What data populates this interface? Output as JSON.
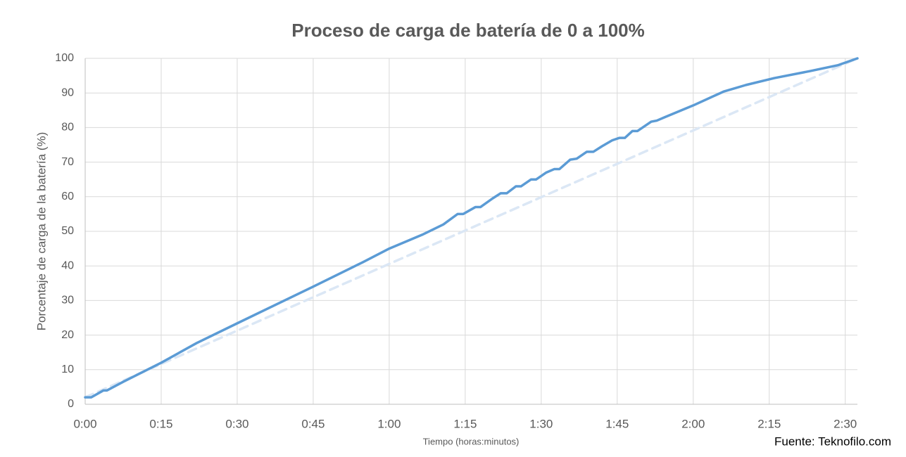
{
  "chart_data": {
    "type": "line",
    "title": "Proceso de carga de batería de 0 a 100%",
    "x_label": "Tiempo (horas:minutos)",
    "y_label": "Porcentaje de carga de la batería (%)",
    "source": "Fuente: Teknofilo.com",
    "xlim": [
      0,
      152.4
    ],
    "xticks": [
      {
        "value": 0,
        "label": "0:00"
      },
      {
        "value": 15,
        "label": "0:15"
      },
      {
        "value": 30,
        "label": "0:30"
      },
      {
        "value": 45,
        "label": "0:45"
      },
      {
        "value": 60,
        "label": "1:00"
      },
      {
        "value": 75,
        "label": "1:15"
      },
      {
        "value": 90,
        "label": "1:30"
      },
      {
        "value": 105,
        "label": "1:45"
      },
      {
        "value": 120,
        "label": "2:00"
      },
      {
        "value": 135,
        "label": "2:15"
      },
      {
        "value": 150,
        "label": "2:30"
      }
    ],
    "ylim": [
      0,
      100
    ],
    "yticks": [
      0,
      10,
      20,
      30,
      40,
      50,
      60,
      70,
      80,
      90,
      100
    ],
    "grid": true,
    "series": [
      {
        "color": "#dbe7f5",
        "style": "dashed",
        "x": [
          0,
          152.4
        ],
        "values": [
          2,
          100
        ]
      },
      {
        "color": "#5b9bd5",
        "style": "solid",
        "x": [
          0,
          1.2,
          3.6,
          4.3,
          7.5,
          15,
          22,
          30,
          45,
          54.7,
          60,
          66.5,
          70.7,
          73.5,
          74.6,
          77,
          78,
          80.4,
          82,
          83.2,
          85,
          86,
          88,
          89,
          91,
          92.6,
          93.6,
          95.7,
          97,
          99,
          100.3,
          102,
          104,
          105.4,
          106.5,
          108,
          109,
          111.7,
          112.8,
          114.4,
          120,
          126,
          130.4,
          136,
          143,
          148.5,
          152.4
        ],
        "values": [
          2,
          2,
          4,
          4,
          6.5,
          12,
          17.7,
          23.4,
          34,
          41,
          45,
          49,
          52,
          55,
          55,
          57,
          57,
          59.5,
          61,
          61,
          63,
          63,
          65,
          65,
          67,
          68,
          68,
          70.7,
          71,
          73,
          73,
          74.6,
          76.3,
          77,
          77,
          79,
          79,
          81.7,
          82,
          83,
          86.4,
          90.4,
          92.3,
          94.3,
          96.3,
          98,
          100
        ]
      }
    ]
  }
}
